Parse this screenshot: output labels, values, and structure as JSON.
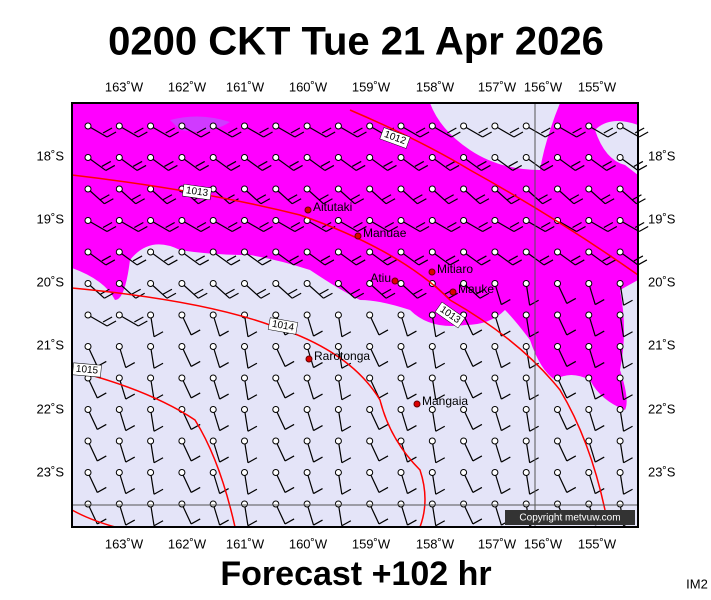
{
  "header": {
    "title": "0200 CKT Tue 21 Apr 2026"
  },
  "footer": {
    "forecast": "Forecast +102 hr",
    "code": "IM2"
  },
  "map": {
    "lon_labels": [
      "163˚W",
      "162˚W",
      "161˚W",
      "160˚W",
      "159˚W",
      "158˚W",
      "157˚W",
      "156˚W",
      "155˚W"
    ],
    "lat_labels": [
      "18˚S",
      "19˚S",
      "20˚S",
      "21˚S",
      "22˚S",
      "23˚S"
    ],
    "places": [
      "Aitutaki",
      "Manuae",
      "Mitiaro",
      "Atiu",
      "Mauke",
      "Rarotonga",
      "Mangaia"
    ],
    "isobar_labels": [
      "1012",
      "1013",
      "1014",
      "1013",
      "1015"
    ],
    "copyright": "Copyright metvuw.com"
  }
}
